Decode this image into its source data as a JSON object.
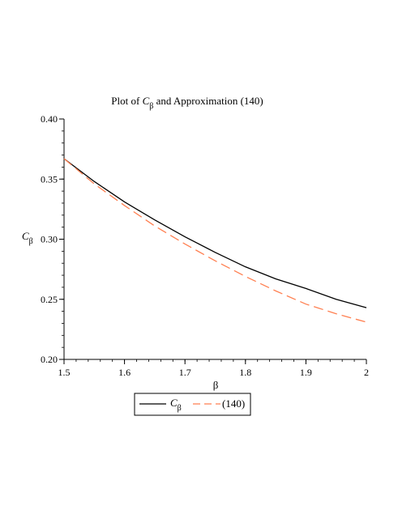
{
  "colors": {
    "series1": "#000000",
    "series2": "#ff7f50",
    "axis": "#000000",
    "background": "#ffffff"
  },
  "chart_data": {
    "type": "line",
    "title_prefix": "Plot of ",
    "title_symbol": "C",
    "title_subscript": "β",
    "title_suffix": " and Approximation (140)",
    "xlabel": "β",
    "ylabel_symbol": "C",
    "ylabel_subscript": "β",
    "xlim": [
      1.5,
      2.0
    ],
    "ylim": [
      0.2,
      0.4
    ],
    "x_ticks": [
      1.5,
      1.6,
      1.7,
      1.8,
      1.9,
      2.0
    ],
    "x_tick_labels": [
      "1.5",
      "1.6",
      "1.7",
      "1.8",
      "1.9",
      "2"
    ],
    "y_ticks": [
      0.2,
      0.25,
      0.3,
      0.35,
      0.4
    ],
    "y_tick_labels": [
      "0.20",
      "0.25",
      "0.30",
      "0.35",
      "0.40"
    ],
    "grid": false,
    "legend_placement": "bottom",
    "series": [
      {
        "name_symbol": "C",
        "name_subscript": "β",
        "style": "solid",
        "x": [
          1.5,
          1.55,
          1.6,
          1.65,
          1.7,
          1.75,
          1.8,
          1.85,
          1.9,
          1.95,
          2.0
        ],
        "y": [
          0.367,
          0.348,
          0.331,
          0.316,
          0.302,
          0.289,
          0.277,
          0.267,
          0.259,
          0.25,
          0.243
        ]
      },
      {
        "name": "(140)",
        "style": "dashed",
        "x": [
          1.5,
          1.55,
          1.6,
          1.65,
          1.7,
          1.75,
          1.8,
          1.85,
          1.9,
          1.95,
          2.0
        ],
        "y": [
          0.367,
          0.346,
          0.328,
          0.311,
          0.296,
          0.282,
          0.269,
          0.257,
          0.246,
          0.238,
          0.231
        ]
      }
    ]
  }
}
